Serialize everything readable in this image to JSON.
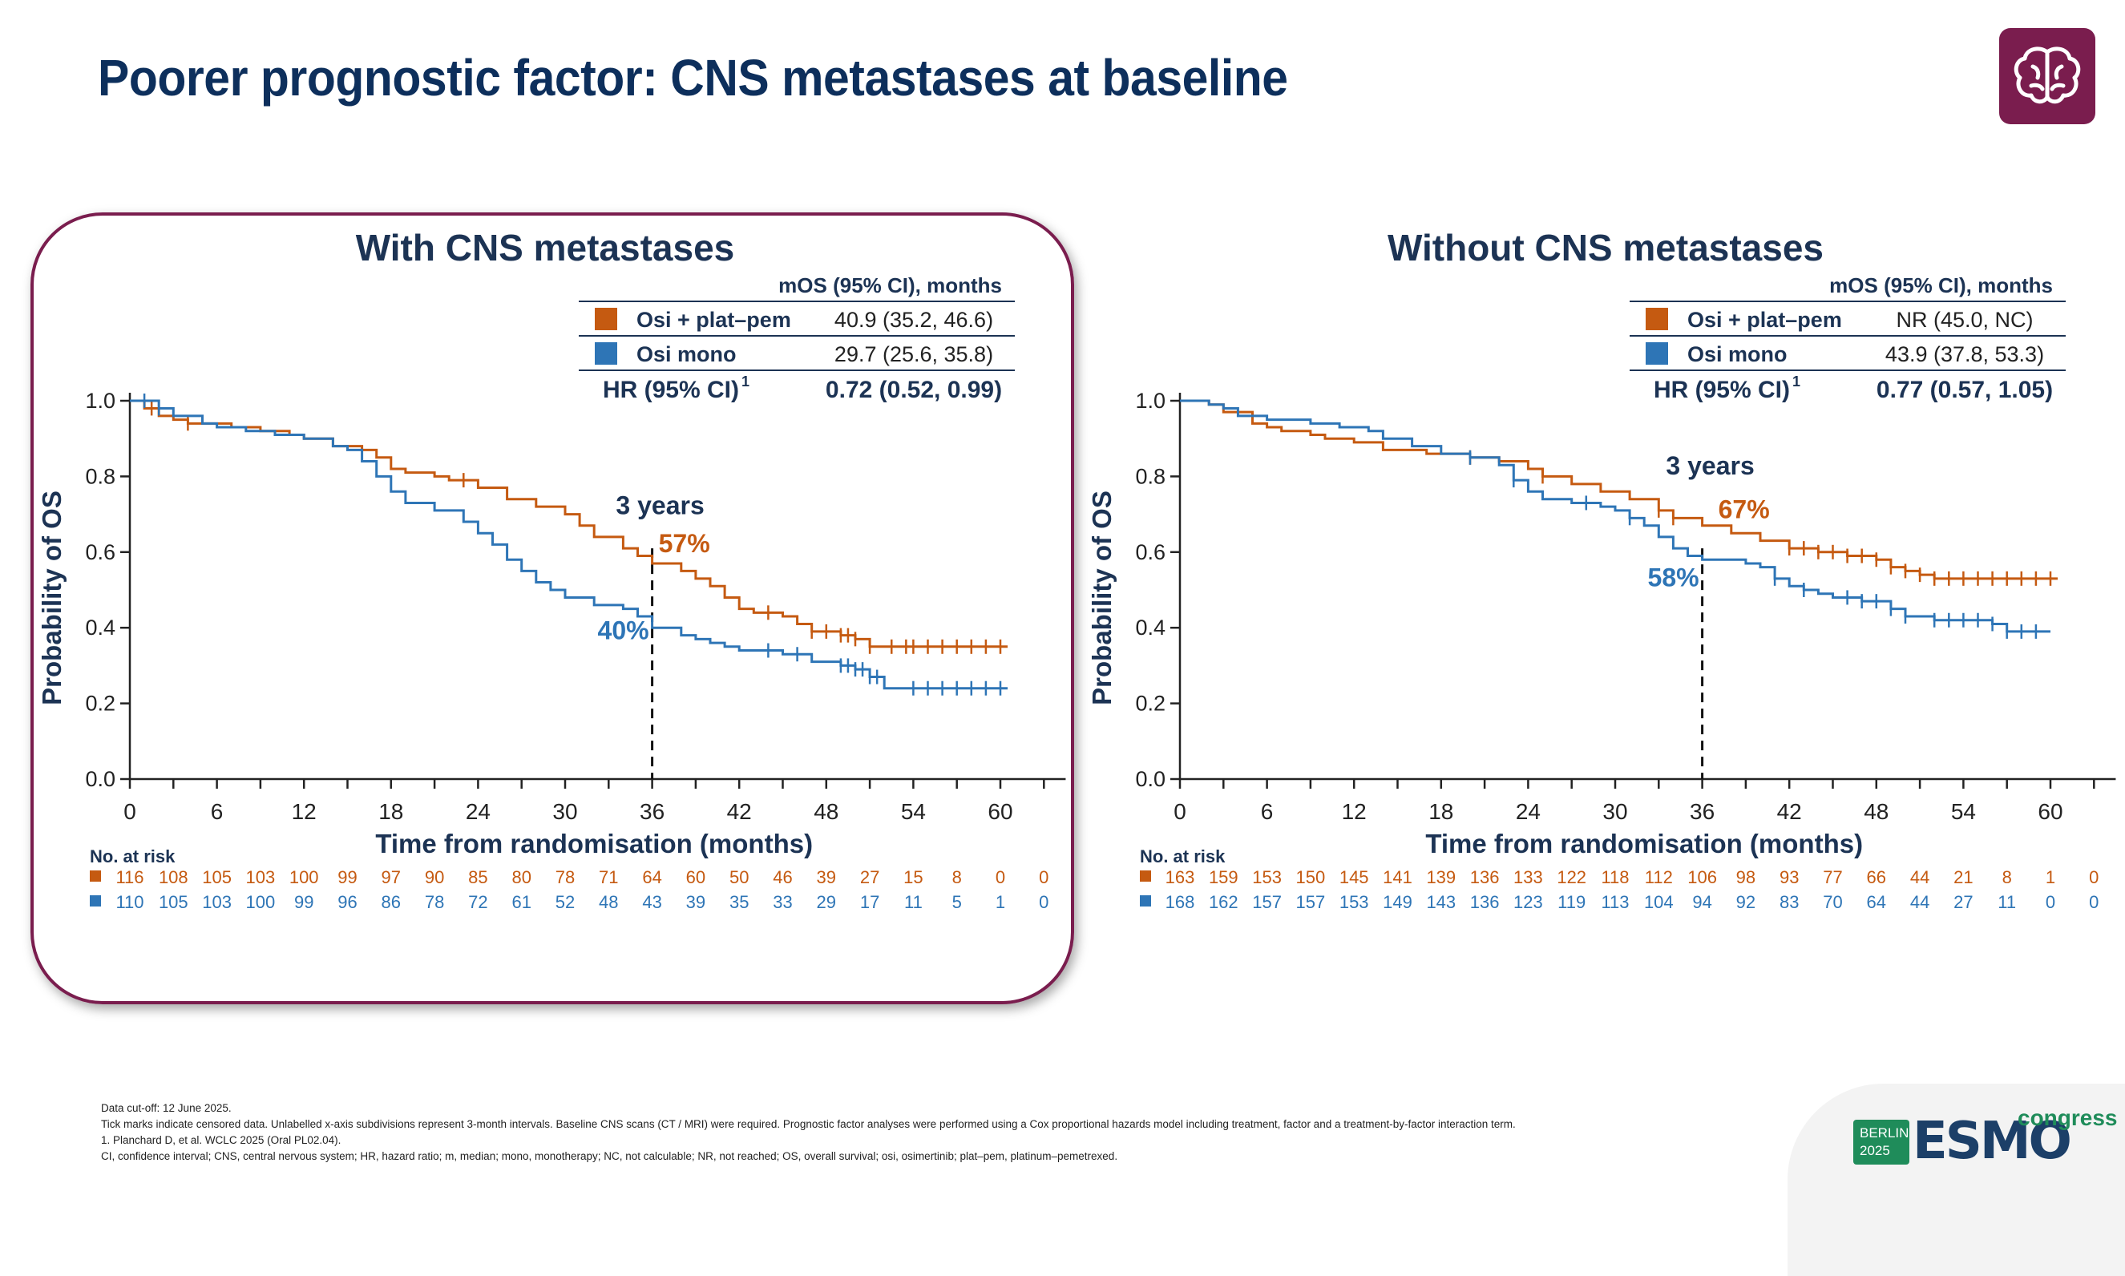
{
  "slide": {
    "title": "Poorer prognostic factor: CNS metastases at baseline",
    "brain_icon": "brain-icon",
    "colors": {
      "osi_plat_pem": "#c55a11",
      "osi_mono": "#2e75b6",
      "title": "#0d2f5c",
      "accent": "#7a1d4e"
    }
  },
  "chart_data": [
    {
      "type": "line",
      "title": "With CNS metastases",
      "xlabel": "Time from randomisation (months)",
      "ylabel": "Probability of OS",
      "xlim": [
        0,
        60
      ],
      "ylim": [
        0,
        1
      ],
      "x_ticks": [
        "0",
        "6",
        "12",
        "18",
        "24",
        "30",
        "36",
        "42",
        "48",
        "54",
        "60"
      ],
      "y_ticks": [
        "0.0",
        "0.2",
        "0.4",
        "0.6",
        "0.8",
        "1.0"
      ],
      "legend_header": "mOS (95% CI), months",
      "series": [
        {
          "name": "Osi + plat–pem",
          "color": "#c55a11",
          "median": "40.9 (35.2, 46.6)",
          "landmark_label": "57%",
          "points": [
            [
              0,
              1.0
            ],
            [
              1,
              0.98
            ],
            [
              2,
              0.96
            ],
            [
              3,
              0.95
            ],
            [
              4,
              0.94
            ],
            [
              5,
              0.94
            ],
            [
              7,
              0.93
            ],
            [
              9,
              0.92
            ],
            [
              11,
              0.91
            ],
            [
              12,
              0.9
            ],
            [
              14,
              0.88
            ],
            [
              16,
              0.87
            ],
            [
              17,
              0.85
            ],
            [
              18,
              0.82
            ],
            [
              19,
              0.81
            ],
            [
              21,
              0.8
            ],
            [
              22,
              0.79
            ],
            [
              24,
              0.77
            ],
            [
              26,
              0.74
            ],
            [
              28,
              0.72
            ],
            [
              30,
              0.7
            ],
            [
              31,
              0.67
            ],
            [
              32,
              0.64
            ],
            [
              34,
              0.61
            ],
            [
              35,
              0.59
            ],
            [
              36,
              0.57
            ],
            [
              38,
              0.55
            ],
            [
              39,
              0.53
            ],
            [
              40,
              0.51
            ],
            [
              41,
              0.48
            ],
            [
              42,
              0.45
            ],
            [
              43,
              0.44
            ],
            [
              45,
              0.43
            ],
            [
              46,
              0.41
            ],
            [
              47,
              0.39
            ],
            [
              49,
              0.38
            ],
            [
              50,
              0.37
            ],
            [
              51,
              0.35
            ],
            [
              55,
              0.35
            ],
            [
              60.5,
              0.35
            ]
          ],
          "censor_x": [
            1.5,
            4,
            23,
            44,
            47,
            48,
            49,
            49.5,
            50,
            51,
            52.5,
            53.5,
            54,
            55,
            56,
            57,
            58,
            59,
            60
          ]
        },
        {
          "name": "Osi mono",
          "color": "#2e75b6",
          "median": "29.7 (25.6, 35.8)",
          "landmark_label": "40%",
          "points": [
            [
              0,
              1.0
            ],
            [
              2,
              0.98
            ],
            [
              3,
              0.96
            ],
            [
              5,
              0.94
            ],
            [
              6,
              0.93
            ],
            [
              8,
              0.92
            ],
            [
              10,
              0.91
            ],
            [
              12,
              0.9
            ],
            [
              14,
              0.88
            ],
            [
              15,
              0.87
            ],
            [
              16,
              0.84
            ],
            [
              17,
              0.8
            ],
            [
              18,
              0.76
            ],
            [
              19,
              0.73
            ],
            [
              21,
              0.71
            ],
            [
              23,
              0.68
            ],
            [
              24,
              0.65
            ],
            [
              25,
              0.62
            ],
            [
              26,
              0.58
            ],
            [
              27,
              0.55
            ],
            [
              28,
              0.52
            ],
            [
              29,
              0.5
            ],
            [
              30,
              0.48
            ],
            [
              32,
              0.46
            ],
            [
              34,
              0.45
            ],
            [
              35,
              0.43
            ],
            [
              36,
              0.4
            ],
            [
              38,
              0.38
            ],
            [
              39,
              0.37
            ],
            [
              40,
              0.36
            ],
            [
              41,
              0.35
            ],
            [
              42,
              0.34
            ],
            [
              45,
              0.33
            ],
            [
              47,
              0.31
            ],
            [
              49,
              0.3
            ],
            [
              50,
              0.29
            ],
            [
              51,
              0.27
            ],
            [
              52,
              0.24
            ],
            [
              55,
              0.24
            ],
            [
              60.5,
              0.24
            ]
          ],
          "censor_x": [
            1,
            2,
            44,
            46,
            49,
            49.5,
            50,
            50.5,
            51,
            51.5,
            54,
            55,
            56,
            57,
            58,
            59,
            60
          ]
        }
      ],
      "hr_label": "HR (95% CI)",
      "hr_sup": "1",
      "hr_value": "0.72 (0.52, 0.99)",
      "landmark": {
        "x": 36,
        "label": "3 years"
      },
      "at_risk": {
        "title": "No. at risk",
        "rows": [
          {
            "color": "#c55a11",
            "values": [
              "116",
              "108",
              "105",
              "103",
              "100",
              "99",
              "97",
              "90",
              "85",
              "80",
              "78",
              "71",
              "64",
              "60",
              "50",
              "46",
              "39",
              "27",
              "15",
              "8",
              "0",
              "0"
            ]
          },
          {
            "color": "#2e75b6",
            "values": [
              "110",
              "105",
              "103",
              "100",
              "99",
              "96",
              "86",
              "78",
              "72",
              "61",
              "52",
              "48",
              "43",
              "39",
              "35",
              "33",
              "29",
              "17",
              "11",
              "5",
              "1",
              "0"
            ]
          }
        ]
      }
    },
    {
      "type": "line",
      "title": "Without CNS metastases",
      "xlabel": "Time from randomisation (months)",
      "ylabel": "Probability of OS",
      "xlim": [
        0,
        60
      ],
      "ylim": [
        0,
        1
      ],
      "x_ticks": [
        "0",
        "6",
        "12",
        "18",
        "24",
        "30",
        "36",
        "42",
        "48",
        "54",
        "60"
      ],
      "y_ticks": [
        "0.0",
        "0.2",
        "0.4",
        "0.6",
        "0.8",
        "1.0"
      ],
      "legend_header": "mOS (95% CI), months",
      "series": [
        {
          "name": "Osi + plat–pem",
          "color": "#c55a11",
          "median": "NR (45.0, NC)",
          "landmark_label": "67%",
          "points": [
            [
              0,
              1.0
            ],
            [
              2,
              0.99
            ],
            [
              3,
              0.97
            ],
            [
              5,
              0.94
            ],
            [
              6,
              0.93
            ],
            [
              7,
              0.92
            ],
            [
              9,
              0.91
            ],
            [
              10,
              0.9
            ],
            [
              12,
              0.89
            ],
            [
              14,
              0.87
            ],
            [
              17,
              0.86
            ],
            [
              20,
              0.85
            ],
            [
              22,
              0.84
            ],
            [
              24,
              0.82
            ],
            [
              25,
              0.8
            ],
            [
              27,
              0.78
            ],
            [
              29,
              0.76
            ],
            [
              31,
              0.74
            ],
            [
              33,
              0.71
            ],
            [
              34,
              0.69
            ],
            [
              36,
              0.67
            ],
            [
              38,
              0.65
            ],
            [
              40,
              0.63
            ],
            [
              42,
              0.61
            ],
            [
              44,
              0.6
            ],
            [
              46,
              0.59
            ],
            [
              48,
              0.58
            ],
            [
              49,
              0.56
            ],
            [
              50,
              0.55
            ],
            [
              51,
              0.54
            ],
            [
              52,
              0.53
            ],
            [
              56,
              0.53
            ],
            [
              60.5,
              0.53
            ]
          ],
          "censor_x": [
            20,
            25,
            33,
            34,
            42,
            43,
            44,
            45,
            46,
            47,
            48,
            49,
            50,
            51,
            52,
            53,
            54,
            55,
            56,
            57,
            58,
            59,
            60
          ]
        },
        {
          "name": "Osi mono",
          "color": "#2e75b6",
          "median": "43.9 (37.8, 53.3)",
          "landmark_label": "58%",
          "points": [
            [
              0,
              1.0
            ],
            [
              2,
              0.99
            ],
            [
              3,
              0.98
            ],
            [
              4,
              0.96
            ],
            [
              6,
              0.95
            ],
            [
              9,
              0.94
            ],
            [
              11,
              0.93
            ],
            [
              13,
              0.92
            ],
            [
              14,
              0.9
            ],
            [
              16,
              0.88
            ],
            [
              18,
              0.86
            ],
            [
              20,
              0.85
            ],
            [
              22,
              0.83
            ],
            [
              23,
              0.79
            ],
            [
              24,
              0.76
            ],
            [
              25,
              0.74
            ],
            [
              27,
              0.73
            ],
            [
              29,
              0.72
            ],
            [
              30,
              0.71
            ],
            [
              31,
              0.69
            ],
            [
              32,
              0.67
            ],
            [
              33,
              0.64
            ],
            [
              34,
              0.61
            ],
            [
              35,
              0.59
            ],
            [
              36,
              0.58
            ],
            [
              39,
              0.57
            ],
            [
              40,
              0.56
            ],
            [
              41,
              0.53
            ],
            [
              42,
              0.51
            ],
            [
              43,
              0.5
            ],
            [
              44,
              0.49
            ],
            [
              45,
              0.48
            ],
            [
              47,
              0.47
            ],
            [
              49,
              0.45
            ],
            [
              50,
              0.43
            ],
            [
              52,
              0.42
            ],
            [
              54,
              0.42
            ],
            [
              56,
              0.41
            ],
            [
              57,
              0.39
            ],
            [
              60,
              0.39
            ]
          ],
          "censor_x": [
            20,
            23,
            28,
            31,
            41,
            43,
            46,
            47,
            48,
            49,
            50,
            52,
            53,
            54,
            55,
            56,
            57,
            58,
            59
          ]
        }
      ],
      "hr_label": "HR (95% CI)",
      "hr_sup": "1",
      "hr_value": "0.77 (0.57, 1.05)",
      "landmark": {
        "x": 36,
        "label": "3 years"
      },
      "at_risk": {
        "title": "No. at risk",
        "rows": [
          {
            "color": "#c55a11",
            "values": [
              "163",
              "159",
              "153",
              "150",
              "145",
              "141",
              "139",
              "136",
              "133",
              "122",
              "118",
              "112",
              "106",
              "98",
              "93",
              "77",
              "66",
              "44",
              "21",
              "8",
              "1",
              "0"
            ]
          },
          {
            "color": "#2e75b6",
            "values": [
              "168",
              "162",
              "157",
              "157",
              "153",
              "149",
              "143",
              "136",
              "123",
              "119",
              "113",
              "104",
              "94",
              "92",
              "83",
              "70",
              "64",
              "44",
              "27",
              "11",
              "0",
              "0"
            ]
          }
        ]
      }
    }
  ],
  "footnotes": [
    "Data cut-off: 12 June 2025.",
    "Tick marks indicate censored data. Unlabelled x-axis subdivisions represent 3-month intervals. Baseline CNS scans (CT / MRI) were required. Prognostic factor analyses were performed using a Cox proportional hazards model including treatment, factor and a treatment-by-factor interaction term.",
    "1. Planchard D, et al. WCLC 2025 (Oral PL02.04).",
    "CI, confidence interval; CNS, central nervous system; HR, hazard ratio; m, median; mono, monotherapy; NC, not calculable; NR, not reached; OS, overall survival; osi, osimertinib; plat–pem, platinum–pemetrexed."
  ],
  "logo": {
    "city": "BERLIN",
    "year": "2025",
    "name": "ESMO",
    "suffix": "congress"
  }
}
